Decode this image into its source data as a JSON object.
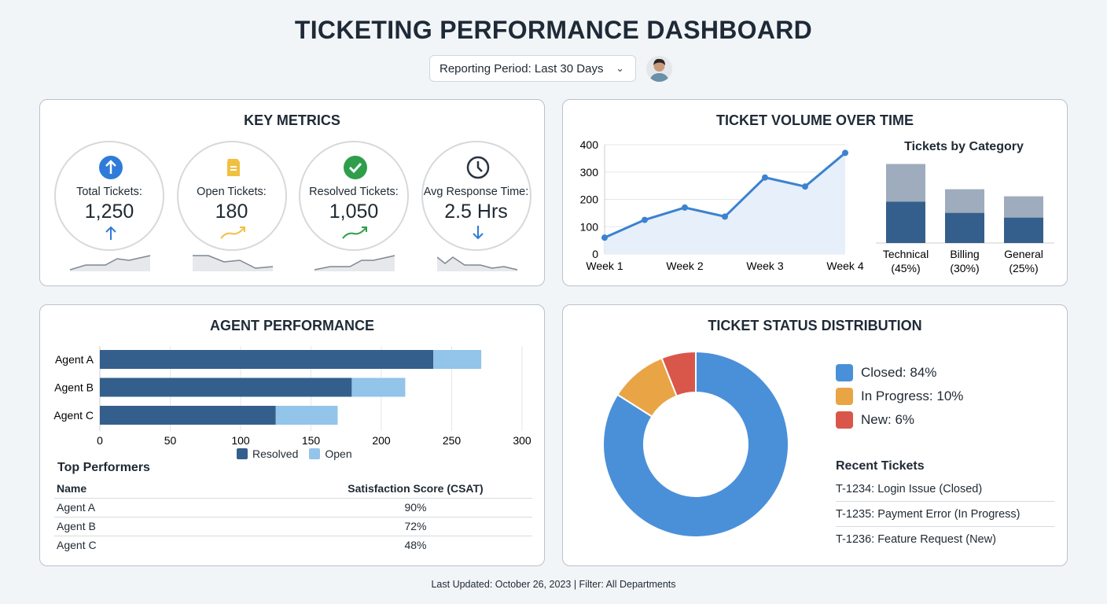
{
  "title": "TICKETING PERFORMANCE DASHBOARD",
  "period": {
    "label": "Reporting Period: Last 30 Days",
    "icon": "chevron-down-icon"
  },
  "key_metrics": {
    "title": "KEY METRICS",
    "items": [
      {
        "label": "Total Tickets:",
        "value": "1,250",
        "icon": "arrow-up-circle-icon",
        "trend": "arrow-up",
        "color": "#2f7bd9"
      },
      {
        "label": "Open Tickets:",
        "value": "180",
        "icon": "ticket-icon",
        "trend": "trend-up",
        "color": "#f0c040"
      },
      {
        "label": "Resolved Tickets:",
        "value": "1,050",
        "icon": "check-circle-icon",
        "trend": "trend-up",
        "color": "#2f9e4b"
      },
      {
        "label": "Avg Response Time:",
        "value": "2.5 Hrs",
        "icon": "clock-icon",
        "trend": "arrow-down",
        "color": "#2f7bd9"
      }
    ]
  },
  "volume": {
    "title": "TICKET VOLUME OVER TIME"
  },
  "category": {
    "title": "Tickets by Category"
  },
  "agent": {
    "title": "AGENT PERFORMANCE",
    "top_title": "Top Performers",
    "columns": [
      "Name",
      "Satisfaction Score (CSAT)"
    ],
    "rows": [
      [
        "Agent A",
        "90%"
      ],
      [
        "Agent B",
        "72%"
      ],
      [
        "Agent C",
        "48%"
      ]
    ]
  },
  "status": {
    "title": "TICKET STATUS DISTRIBUTION",
    "recent_title": "Recent Tickets",
    "recent": [
      "T-1234: Login Issue (Closed)",
      "T-1235: Payment Error (In Progress)",
      "T-1236: Feature Request (New)"
    ]
  },
  "footer": "Last Updated: October 26, 2023 | Filter: All Departments",
  "chart_data": [
    {
      "type": "line",
      "x": [
        "Week 1",
        "",
        "Week 2",
        "",
        "Week 3",
        "",
        "Week 4"
      ],
      "values": [
        60,
        125,
        170,
        137,
        280,
        247,
        370
      ],
      "ylim": [
        0,
        400
      ],
      "yticks": [
        0,
        100,
        200,
        300,
        400
      ],
      "xticks": [
        "Week 1",
        "Week 2",
        "Week 3",
        "Week 4"
      ],
      "grid": true,
      "color": "#3b82d0",
      "area": true
    },
    {
      "type": "bar",
      "stacked": true,
      "title": "Tickets by Category",
      "categories": [
        "Technical\n(45%)",
        "Billing\n(30%)",
        "General\n(25%)"
      ],
      "series": [
        {
          "values": [
            175,
            128,
            108
          ],
          "color": "#345f8c"
        },
        {
          "values": [
            160,
            100,
            90
          ],
          "color": "#9eacbd"
        }
      ]
    },
    {
      "type": "bar",
      "orientation": "horizontal",
      "stacked": true,
      "categories": [
        "Agent A",
        "Agent B",
        "Agent C"
      ],
      "series": [
        {
          "name": "Resolved",
          "values": [
            237,
            179,
            125
          ],
          "color": "#345f8c"
        },
        {
          "name": "Open",
          "values": [
            34,
            38,
            44
          ],
          "color": "#93c4ea"
        }
      ],
      "xlim": [
        0,
        300
      ],
      "xticks": [
        0,
        50,
        100,
        150,
        200,
        250,
        300
      ],
      "grid": true,
      "legend": "bottom"
    },
    {
      "type": "pie",
      "donut": true,
      "slices": [
        {
          "name": "Closed: 84%",
          "value": 84,
          "color": "#4a90d9"
        },
        {
          "name": "In Progress: 10%",
          "value": 10,
          "color": "#e9a445"
        },
        {
          "name": "New: 6%",
          "value": 6,
          "color": "#d9574a"
        }
      ],
      "legend": "right"
    }
  ]
}
